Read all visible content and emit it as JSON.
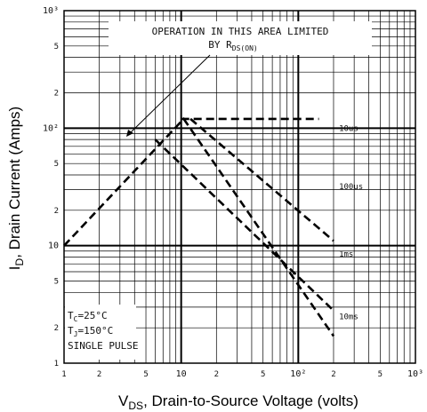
{
  "chart_data": {
    "type": "line",
    "title": "",
    "xlabel": {
      "main": "V",
      "sub": "DS",
      "rest": ", Drain-to-Source Voltage (volts)"
    },
    "ylabel": {
      "main": "I",
      "sub": "D",
      "rest": ", Drain Current (Amps)"
    },
    "x_scale": "log",
    "y_scale": "log",
    "xlim": [
      1,
      1000
    ],
    "ylim": [
      1,
      1000
    ],
    "grid": true,
    "x_ticks": [
      {
        "v": 1,
        "t": "1"
      },
      {
        "v": 2,
        "t": "2"
      },
      {
        "v": 5,
        "t": "5"
      },
      {
        "v": 10,
        "t": "10"
      },
      {
        "v": 20,
        "t": "2"
      },
      {
        "v": 50,
        "t": "5"
      },
      {
        "v": 100,
        "t": "10²"
      },
      {
        "v": 200,
        "t": "2"
      },
      {
        "v": 500,
        "t": "5"
      },
      {
        "v": 1000,
        "t": "10³"
      }
    ],
    "y_ticks": [
      {
        "v": 1,
        "t": "1"
      },
      {
        "v": 2,
        "t": "2"
      },
      {
        "v": 5,
        "t": "5"
      },
      {
        "v": 10,
        "t": "10"
      },
      {
        "v": 20,
        "t": "2"
      },
      {
        "v": 50,
        "t": "5"
      },
      {
        "v": 100,
        "t": "10²"
      },
      {
        "v": 200,
        "t": "2"
      },
      {
        "v": 500,
        "t": "5"
      },
      {
        "v": 1000,
        "t": "10³"
      }
    ],
    "series": [
      {
        "name": "10us",
        "x": [
          10,
          150
        ],
        "y": [
          120,
          120
        ]
      },
      {
        "name": "100us",
        "x": [
          12,
          200
        ],
        "y": [
          120,
          11
        ]
      },
      {
        "name": "1ms",
        "x": [
          6,
          200
        ],
        "y": [
          80,
          2.8
        ]
      },
      {
        "name": "10ms",
        "x": [
          1,
          10.5,
          200
        ],
        "y": [
          10,
          120,
          1.7
        ]
      }
    ],
    "curve_labels": [
      {
        "text": "10us",
        "x": 215,
        "y": 100
      },
      {
        "text": "100us",
        "x": 215,
        "y": 32
      },
      {
        "text": "1ms",
        "x": 215,
        "y": 8.5
      },
      {
        "text": "10ms",
        "x": 215,
        "y": 2.5
      }
    ],
    "annotations": {
      "area_line1": "OPERATION IN THIS AREA LIMITED",
      "area_line2_pre": "BY R",
      "area_line2_sub": "DS(ON)",
      "conditions": [
        {
          "main": "T",
          "sub": "C",
          "rest": "=25°C"
        },
        {
          "main": "T",
          "sub": "J",
          "rest": "=150°C"
        },
        {
          "main": "SINGLE PULSE",
          "sub": "",
          "rest": ""
        }
      ]
    }
  }
}
